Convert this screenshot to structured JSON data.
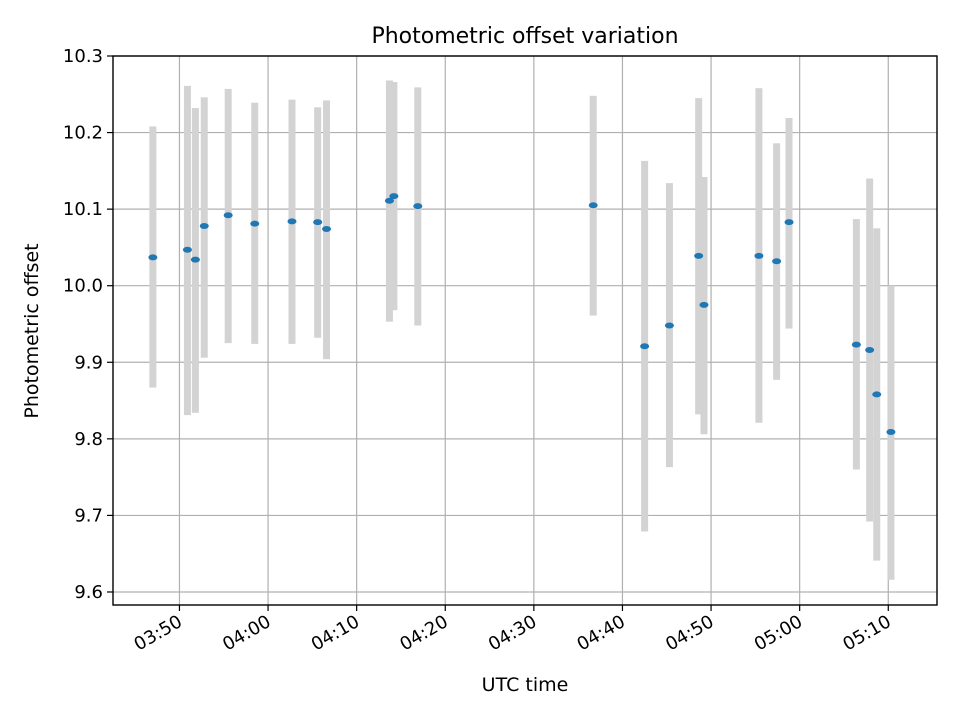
{
  "chart_data": {
    "type": "scatter",
    "title": "Photometric offset variation",
    "xlabel": "UTC time",
    "ylabel": "Photometric offset",
    "grid": true,
    "xlim": [
      -7.5,
      85.5
    ],
    "ylim": [
      9.583,
      10.3
    ],
    "x_unit": "minutes since 03:50 UTC",
    "x_ticks": [
      {
        "value": 0,
        "label": "03:50"
      },
      {
        "value": 10,
        "label": "04:00"
      },
      {
        "value": 20,
        "label": "04:10"
      },
      {
        "value": 30,
        "label": "04:20"
      },
      {
        "value": 40,
        "label": "04:30"
      },
      {
        "value": 50,
        "label": "04:40"
      },
      {
        "value": 60,
        "label": "04:50"
      },
      {
        "value": 70,
        "label": "05:00"
      },
      {
        "value": 80,
        "label": "05:10"
      }
    ],
    "y_ticks": [
      {
        "value": 9.6,
        "label": "9.6"
      },
      {
        "value": 9.7,
        "label": "9.7"
      },
      {
        "value": 9.8,
        "label": "9.8"
      },
      {
        "value": 9.9,
        "label": "9.9"
      },
      {
        "value": 10.0,
        "label": "10.0"
      },
      {
        "value": 10.1,
        "label": "10.1"
      },
      {
        "value": 10.2,
        "label": "10.2"
      },
      {
        "value": 10.3,
        "label": "10.3"
      }
    ],
    "points": [
      {
        "x": -3.0,
        "y": 10.037,
        "ylow": 9.867,
        "yhigh": 10.208
      },
      {
        "x": 0.9,
        "y": 10.047,
        "ylow": 9.831,
        "yhigh": 10.261
      },
      {
        "x": 1.8,
        "y": 10.034,
        "ylow": 9.834,
        "yhigh": 10.232
      },
      {
        "x": 2.8,
        "y": 10.078,
        "ylow": 9.906,
        "yhigh": 10.246
      },
      {
        "x": 5.5,
        "y": 10.092,
        "ylow": 9.925,
        "yhigh": 10.257
      },
      {
        "x": 8.5,
        "y": 10.081,
        "ylow": 9.924,
        "yhigh": 10.239
      },
      {
        "x": 12.7,
        "y": 10.084,
        "ylow": 9.924,
        "yhigh": 10.243
      },
      {
        "x": 15.6,
        "y": 10.083,
        "ylow": 9.932,
        "yhigh": 10.233
      },
      {
        "x": 16.6,
        "y": 10.074,
        "ylow": 9.904,
        "yhigh": 10.242
      },
      {
        "x": 23.7,
        "y": 10.111,
        "ylow": 9.953,
        "yhigh": 10.268
      },
      {
        "x": 24.2,
        "y": 10.117,
        "ylow": 9.968,
        "yhigh": 10.266
      },
      {
        "x": 26.9,
        "y": 10.104,
        "ylow": 9.948,
        "yhigh": 10.259
      },
      {
        "x": 46.7,
        "y": 10.105,
        "ylow": 9.961,
        "yhigh": 10.248
      },
      {
        "x": 52.5,
        "y": 9.921,
        "ylow": 9.679,
        "yhigh": 10.163
      },
      {
        "x": 55.3,
        "y": 9.948,
        "ylow": 9.763,
        "yhigh": 10.134
      },
      {
        "x": 58.6,
        "y": 10.039,
        "ylow": 9.832,
        "yhigh": 10.245
      },
      {
        "x": 59.2,
        "y": 9.975,
        "ylow": 9.806,
        "yhigh": 10.142
      },
      {
        "x": 65.4,
        "y": 10.039,
        "ylow": 9.821,
        "yhigh": 10.258
      },
      {
        "x": 67.4,
        "y": 10.032,
        "ylow": 9.877,
        "yhigh": 10.186
      },
      {
        "x": 68.8,
        "y": 10.083,
        "ylow": 9.944,
        "yhigh": 10.219
      },
      {
        "x": 76.4,
        "y": 9.923,
        "ylow": 9.76,
        "yhigh": 10.087
      },
      {
        "x": 77.9,
        "y": 9.916,
        "ylow": 9.692,
        "yhigh": 10.14
      },
      {
        "x": 78.7,
        "y": 9.858,
        "ylow": 9.641,
        "yhigh": 10.075
      },
      {
        "x": 80.3,
        "y": 9.809,
        "ylow": 9.616,
        "yhigh": 10.0
      }
    ]
  }
}
